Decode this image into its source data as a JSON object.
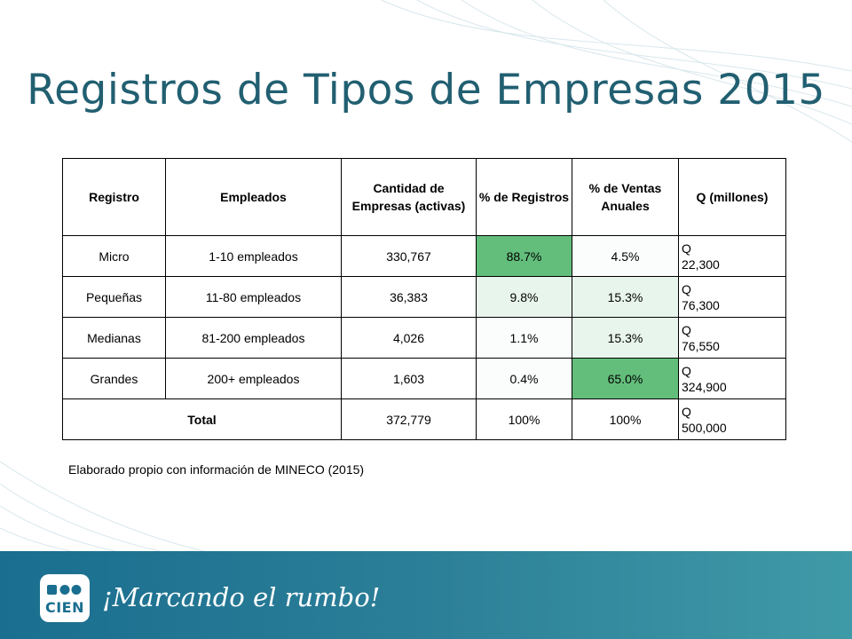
{
  "slide": {
    "title": "Registros de Tipos de Empresas 2015",
    "note": "Elaborado propio con información de MINECO (2015)"
  },
  "table": {
    "headers": {
      "registro": "Registro",
      "empleados": "Empleados",
      "cantidad": "Cantidad de Empresas (activas)",
      "pct_registros": "% de Registros",
      "pct_ventas": "% de Ventas Anuales",
      "q_millones": "Q (millones)"
    },
    "rows": [
      {
        "registro": "Micro",
        "empleados": "1-10 empleados",
        "cantidad": "330,767",
        "pct_registros": "88.7%",
        "pct_ventas": "4.5%",
        "q_symbol": "Q",
        "q_value": "22,300"
      },
      {
        "registro": "Pequeñas",
        "empleados": "11-80 empleados",
        "cantidad": "36,383",
        "pct_registros": "9.8%",
        "pct_ventas": "15.3%",
        "q_symbol": "Q",
        "q_value": "76,300"
      },
      {
        "registro": "Medianas",
        "empleados": "81-200 empleados",
        "cantidad": "4,026",
        "pct_registros": "1.1%",
        "pct_ventas": "15.3%",
        "q_symbol": "Q",
        "q_value": "76,550"
      },
      {
        "registro": "Grandes",
        "empleados": "200+ empleados",
        "cantidad": "1,603",
        "pct_registros": "0.4%",
        "pct_ventas": "65.0%",
        "q_symbol": "Q",
        "q_value": "324,900"
      }
    ],
    "total": {
      "label": "Total",
      "cantidad": "372,779",
      "pct_registros": "100%",
      "pct_ventas": "100%",
      "q_symbol": "Q",
      "q_value": "500,000"
    }
  },
  "footer": {
    "logo_text": "CIEN",
    "slogan": "¡Marcando el rumbo!"
  },
  "colors": {
    "title": "#215f71",
    "heat_high": "#63be7b",
    "heat_mid": "#e8f5ec",
    "footer": "#1a6e8f"
  }
}
